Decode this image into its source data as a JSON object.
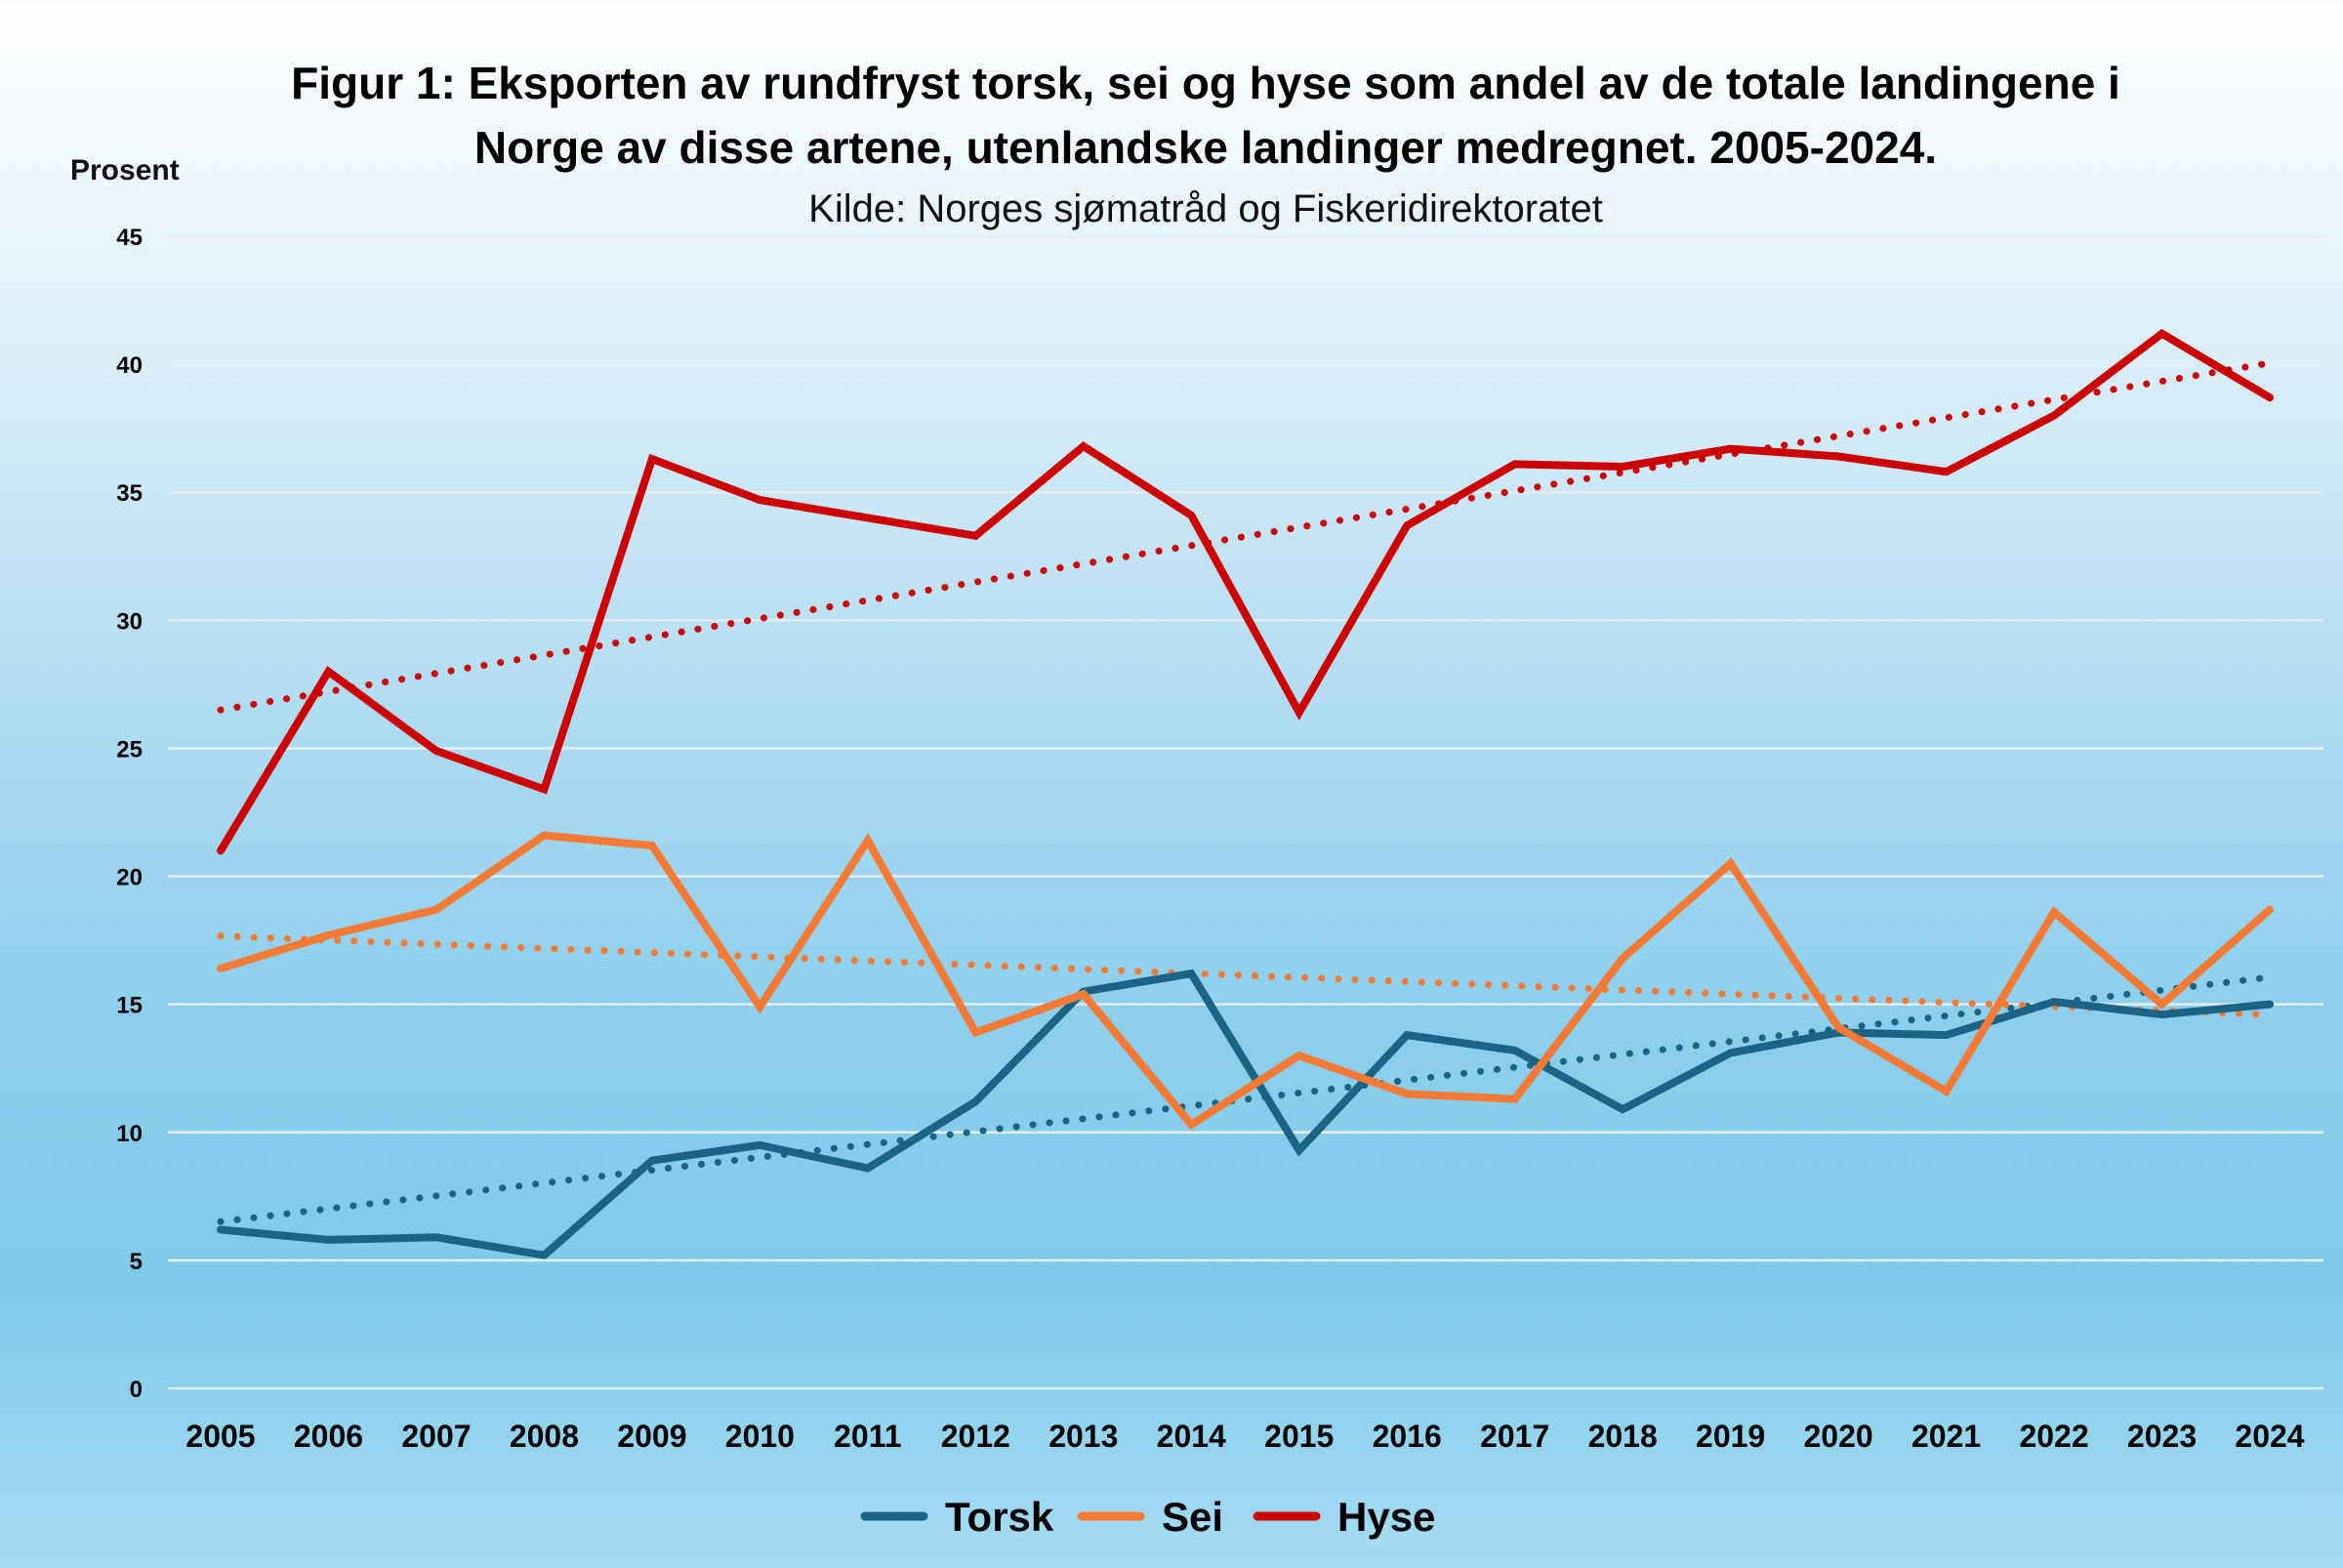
{
  "chart_data": {
    "type": "line",
    "title_line1": "Figur 1: Eksporten av rundfryst torsk, sei og hyse som andel av de totale landingene i",
    "title_line2": "Norge av disse artene, utenlandske landinger medregnet. 2005-2024.",
    "subtitle": "Kilde: Norges sjømatråd og Fiskeridirektoratet",
    "xlabel": "",
    "ylabel": "Prosent",
    "ylim": [
      0,
      45
    ],
    "yticks": [
      0,
      5,
      10,
      15,
      20,
      25,
      30,
      35,
      40,
      45
    ],
    "grid": true,
    "legend_position": "bottom",
    "x": [
      "2005",
      "2006",
      "2007",
      "2008",
      "2009",
      "2010",
      "2011",
      "2012",
      "2013",
      "2014",
      "2015",
      "2016",
      "2017",
      "2018",
      "2019",
      "2020",
      "2021",
      "2022",
      "2023",
      "2024"
    ],
    "series": [
      {
        "name": "Torsk",
        "color": "#1b6486",
        "values": [
          6.2,
          5.8,
          5.9,
          5.2,
          8.9,
          9.5,
          8.6,
          11.2,
          15.5,
          16.2,
          9.3,
          13.8,
          13.2,
          10.9,
          13.1,
          13.9,
          13.8,
          15.1,
          14.6,
          15.0
        ],
        "trendline": "linear"
      },
      {
        "name": "Sei",
        "color": "#f47a35",
        "values": [
          16.4,
          17.7,
          18.7,
          21.6,
          21.2,
          14.9,
          21.4,
          13.9,
          15.4,
          10.3,
          13.0,
          11.5,
          11.3,
          16.8,
          20.5,
          14.1,
          11.6,
          18.6,
          15.0,
          18.7
        ],
        "trendline": "linear"
      },
      {
        "name": "Hyse",
        "color": "#cc0000",
        "values": [
          21.0,
          28.0,
          24.9,
          23.4,
          36.3,
          34.7,
          34.0,
          33.3,
          36.8,
          34.1,
          26.4,
          33.7,
          36.1,
          36.0,
          36.7,
          36.4,
          35.8,
          38.0,
          41.2,
          38.7
        ],
        "trendline": "linear"
      }
    ]
  }
}
